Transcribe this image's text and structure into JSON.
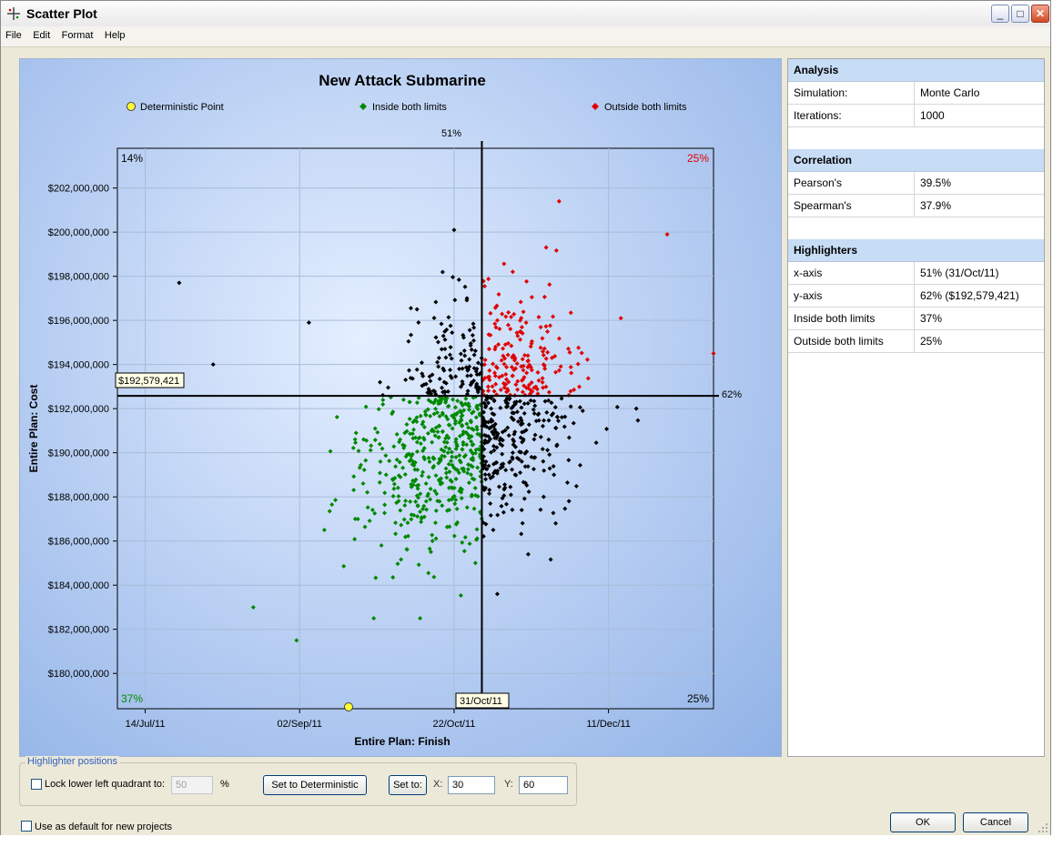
{
  "window": {
    "title": "Scatter Plot",
    "minimize_label": "_",
    "maximize_label": "□",
    "close_label": "✕"
  },
  "menu": [
    "File",
    "Edit",
    "Format",
    "Help"
  ],
  "chart": {
    "title": "New Attack Submarine",
    "legend": [
      {
        "label": "Deterministic Point",
        "color": "#ffff33"
      },
      {
        "label": "Inside both limits",
        "color": "#008800"
      },
      {
        "label": "Outside both limits",
        "color": "#e00000"
      }
    ],
    "xlabel": "Entire Plan: Finish",
    "ylabel": "Entire Plan: Cost",
    "x_ticks": [
      "14/Jul/11",
      "02/Sep/11",
      "22/Oct/11",
      "11/Dec/11"
    ],
    "y_ticks": [
      "$180,000,000",
      "$182,000,000",
      "$184,000,000",
      "$186,000,000",
      "$188,000,000",
      "$190,000,000",
      "$192,000,000",
      "$194,000,000",
      "$196,000,000",
      "$198,000,000",
      "$200,000,000",
      "$202,000,000"
    ],
    "x_highlighter_pct": "51%",
    "y_highlighter_pct": "62%",
    "x_highlighter_value": "31/Oct/11",
    "y_highlighter_value": "$192,579,421",
    "quadrants": {
      "top_left": "14%",
      "top_right": "25%",
      "bottom_left": "37%",
      "bottom_right": "25%"
    },
    "colors": {
      "inside": "#008800",
      "outside": "#e00000",
      "other": "#000000",
      "deterministic": "#ffff33"
    }
  },
  "chart_data": {
    "type": "scatter",
    "title": "New Attack Submarine",
    "xlabel": "Entire Plan: Finish",
    "ylabel": "Entire Plan: Cost",
    "x_axis": "date",
    "xlim": [
      "2011-07-05",
      "2012-01-14"
    ],
    "ylim": [
      178400000,
      203800000
    ],
    "grid": true,
    "legend_position": "top",
    "iterations": 1000,
    "deterministic_point": {
      "x": "2011-09-25",
      "y": 178500000
    },
    "x_highlighter": {
      "x": "2011-10-31",
      "percent": 51
    },
    "y_highlighter": {
      "y": 192579421,
      "percent": 62
    },
    "series": [
      {
        "name": "Inside both limits",
        "color": "#008800",
        "quadrant": "lower-left",
        "share": "37%",
        "points": [
          [
            "2011-09-30",
            189000000
          ],
          [
            "2011-10-10",
            188500000
          ],
          [
            "2011-10-20",
            190000000
          ],
          [
            "2011-09-20",
            187000000
          ],
          [
            "2011-10-15",
            186000000
          ],
          [
            "2011-09-10",
            186500000
          ],
          [
            "2011-08-18",
            183000000
          ],
          [
            "2011-09-01",
            181500000
          ],
          [
            "2011-09-26",
            182500000
          ],
          [
            "2011-10-11",
            182500000
          ]
        ]
      },
      {
        "name": "Outside both limits",
        "color": "#e00000",
        "quadrant": "upper-right",
        "share": "25%",
        "points": [
          [
            "2011-11-20",
            194000000
          ],
          [
            "2011-11-05",
            196000000
          ],
          [
            "2011-11-25",
            201400000
          ],
          [
            "2011-12-30",
            199900000
          ],
          [
            "2012-01-14",
            194500000
          ],
          [
            "2011-11-10",
            198200000
          ],
          [
            "2011-12-15",
            196100000
          ]
        ]
      },
      {
        "name": "Other",
        "color": "#000000",
        "quadrant": "upper-left / lower-right",
        "points": [
          [
            "2011-09-05",
            195900000
          ],
          [
            "2011-10-10",
            196500000
          ],
          [
            "2011-10-22",
            200100000
          ],
          [
            "2011-07-25",
            197700000
          ],
          [
            "2011-08-05",
            194000000
          ],
          [
            "2011-11-10",
            190000000
          ],
          [
            "2011-11-20",
            188000000
          ],
          [
            "2011-11-15",
            185400000
          ],
          [
            "2011-11-05",
            183600000
          ],
          [
            "2011-12-20",
            192000000
          ]
        ]
      }
    ]
  },
  "analysis": {
    "heading": "Analysis",
    "rows": [
      {
        "k": "Simulation:",
        "v": "Monte Carlo"
      },
      {
        "k": "Iterations:",
        "v": "1000"
      }
    ]
  },
  "correlation": {
    "heading": "Correlation",
    "rows": [
      {
        "k": "Pearson's",
        "v": "39.5%"
      },
      {
        "k": "Spearman's",
        "v": "37.9%"
      }
    ]
  },
  "highlighters": {
    "heading": "Highlighters",
    "rows": [
      {
        "k": "x-axis",
        "v": "51% (31/Oct/11)"
      },
      {
        "k": "y-axis",
        "v": "62% ($192,579,421)"
      },
      {
        "k": "Inside both limits",
        "v": "37%"
      },
      {
        "k": "Outside both limits",
        "v": "25%"
      }
    ]
  },
  "controls": {
    "group_label": "Highlighter positions",
    "lock_label": "Lock lower left quadrant to:",
    "lock_value": "50",
    "pct_sign": "%",
    "set_deterministic_label": "Set to Deterministic",
    "set_to_label": "Set to:",
    "x_label": "X:",
    "x_value": "30",
    "y_label": "Y:",
    "y_value": "60",
    "default_label": "Use as default for new projects",
    "ok_label": "OK",
    "cancel_label": "Cancel"
  }
}
